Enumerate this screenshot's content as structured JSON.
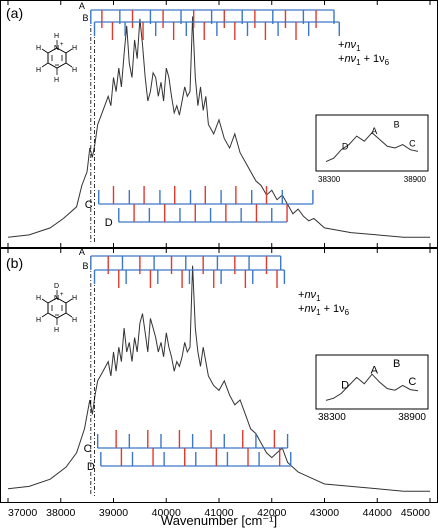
{
  "chart_data": {
    "type": "line",
    "xlabel": "Wavenumber [cm⁻¹]",
    "xlim": [
      37000,
      45000
    ],
    "xticks": [
      "37000",
      "38000",
      "39000",
      "40000",
      "41000",
      "42000",
      "43000",
      "44000",
      "45000"
    ],
    "colors": {
      "nv1": "#3d78c6",
      "nv1_plus_v6": "#e03a2f",
      "trace": "#333333"
    },
    "panels": [
      {
        "label": "(a)",
        "progression_labels": [
          "A",
          "B",
          "C",
          "D"
        ],
        "legend": {
          "nv1": {
            "prefix": "+",
            "term": "nν",
            "sub": "1"
          },
          "nv1_plus_v6": {
            "prefix": "+",
            "term": "nν",
            "sub": "1",
            "mid": " + 1ν",
            "sub2": "6"
          }
        },
        "series": [
          {
            "name": "spectrum",
            "x": [
              37000,
              37400,
              37800,
              38050,
              38300,
              38400,
              38500,
              38550,
              38600,
              38650,
              38700,
              38800,
              38900,
              38950,
              39000,
              39050,
              39100,
              39150,
              39200,
              39250,
              39300,
              39350,
              39400,
              39450,
              39500,
              39550,
              39600,
              39650,
              39700,
              39750,
              39800,
              39850,
              39900,
              39950,
              40000,
              40050,
              40100,
              40150,
              40200,
              40250,
              40300,
              40350,
              40400,
              40450,
              40500,
              40550,
              40600,
              40650,
              40700,
              40750,
              40800,
              40900,
              41000,
              41100,
              41200,
              41300,
              41400,
              41500,
              41600,
              41700,
              41800,
              41900,
              42000,
              42100,
              42200,
              42300,
              42400,
              42500,
              42600,
              42700,
              42800,
              43000,
              43500,
              44000,
              44500,
              45000
            ],
            "y": [
              0.02,
              0.03,
              0.06,
              0.1,
              0.15,
              0.24,
              0.3,
              0.4,
              0.36,
              0.42,
              0.5,
              0.56,
              0.62,
              0.58,
              0.7,
              0.64,
              0.74,
              0.66,
              0.8,
              0.92,
              0.76,
              0.7,
              0.86,
              0.78,
              0.95,
              0.84,
              0.7,
              0.6,
              0.64,
              0.72,
              0.7,
              0.62,
              0.68,
              0.6,
              0.74,
              0.7,
              0.62,
              0.55,
              0.58,
              0.54,
              0.6,
              0.66,
              0.62,
              0.64,
              0.96,
              0.7,
              0.58,
              0.66,
              0.56,
              0.62,
              0.5,
              0.46,
              0.52,
              0.44,
              0.4,
              0.46,
              0.38,
              0.34,
              0.3,
              0.26,
              0.24,
              0.2,
              0.22,
              0.18,
              0.2,
              0.16,
              0.12,
              0.14,
              0.11,
              0.09,
              0.1,
              0.06,
              0.04,
              0.03,
              0.02,
              0.02
            ]
          }
        ],
        "progressions": [
          {
            "name": "A",
            "color": "nv1",
            "positions": [
              38570,
              39120,
              39700,
              40280,
              40860,
              41440,
              42020,
              42600,
              43180
            ]
          },
          {
            "name": "A",
            "color": "nv1_plus_v6",
            "positions": [
              38780,
              39360,
              39940,
              40520,
              41100,
              41680,
              42260,
              42840
            ]
          },
          {
            "name": "B",
            "color": "nv1",
            "positions": [
              38640,
              39220,
              39800,
              40380,
              40960,
              41540,
              42120,
              42700,
              43280
            ]
          },
          {
            "name": "B",
            "color": "nv1_plus_v6",
            "positions": [
              38980,
              39560,
              40140,
              40720,
              41300,
              41880,
              42460
            ]
          },
          {
            "name": "C",
            "color": "nv1",
            "positions": [
              38720,
              39300,
              39880,
              40460,
              41040,
              41620,
              42200,
              42780
            ]
          },
          {
            "name": "C",
            "color": "nv1_plus_v6",
            "positions": [
              39000,
              39580,
              40160,
              40740,
              41320,
              41900
            ]
          },
          {
            "name": "D",
            "color": "nv1",
            "positions": [
              39100,
              39680,
              40260,
              40840,
              41420,
              42000
            ]
          },
          {
            "name": "D",
            "color": "nv1_plus_v6",
            "positions": [
              39390,
              39970,
              40550,
              41130,
              41710,
              42290
            ]
          }
        ],
        "inset": {
          "labels": [
            "A",
            "B",
            "C",
            "D"
          ],
          "xticks": [
            "38300",
            "38900"
          ],
          "x": [
            38300,
            38350,
            38400,
            38450,
            38500,
            38550,
            38600,
            38650,
            38700,
            38750,
            38800,
            38850,
            38900
          ],
          "y": [
            0.1,
            0.2,
            0.45,
            0.6,
            0.85,
            0.7,
            0.95,
            0.75,
            0.55,
            0.5,
            0.6,
            0.45,
            0.4
          ]
        }
      },
      {
        "label": "(b)",
        "progression_labels": [
          "A",
          "B",
          "C",
          "D"
        ],
        "legend": {
          "nv1": {
            "prefix": "+",
            "term": "nν",
            "sub": "1"
          },
          "nv1_plus_v6": {
            "prefix": "+",
            "term": "nν",
            "sub": "1",
            "mid": " + 1ν",
            "sub2": "6"
          }
        },
        "series": [
          {
            "name": "spectrum",
            "x": [
              37000,
              37400,
              37800,
              38100,
              38300,
              38450,
              38550,
              38600,
              38650,
              38700,
              38800,
              38900,
              38950,
              39000,
              39050,
              39100,
              39150,
              39200,
              39250,
              39300,
              39350,
              39400,
              39450,
              39500,
              39550,
              39600,
              39650,
              39700,
              39750,
              39800,
              39850,
              39900,
              39950,
              40000,
              40050,
              40100,
              40150,
              40200,
              40250,
              40300,
              40350,
              40400,
              40450,
              40500,
              40550,
              40600,
              40650,
              40700,
              40750,
              40800,
              40900,
              41000,
              41100,
              41200,
              41300,
              41400,
              41500,
              41600,
              41700,
              41800,
              41900,
              42000,
              42100,
              42200,
              42300,
              42400,
              42500,
              42600,
              42700,
              42800,
              43000,
              43500,
              44000,
              44500,
              45000
            ],
            "y": [
              0.03,
              0.04,
              0.07,
              0.12,
              0.18,
              0.28,
              0.4,
              0.34,
              0.42,
              0.48,
              0.52,
              0.56,
              0.5,
              0.6,
              0.52,
              0.62,
              0.56,
              0.7,
              0.6,
              0.64,
              0.56,
              0.66,
              0.6,
              0.72,
              0.76,
              0.68,
              0.6,
              0.74,
              0.7,
              0.66,
              0.6,
              0.64,
              0.58,
              0.68,
              0.62,
              0.58,
              0.52,
              0.56,
              0.54,
              0.58,
              0.64,
              0.6,
              0.62,
              0.96,
              0.7,
              0.6,
              0.54,
              0.62,
              0.56,
              0.5,
              0.46,
              0.44,
              0.48,
              0.42,
              0.38,
              0.4,
              0.34,
              0.28,
              0.26,
              0.22,
              0.18,
              0.16,
              0.18,
              0.2,
              0.14,
              0.12,
              0.1,
              0.09,
              0.08,
              0.07,
              0.05,
              0.04,
              0.03,
              0.02,
              0.02
            ]
          }
        ],
        "progressions": [
          {
            "name": "A",
            "color": "nv1",
            "positions": [
              38570,
              39170,
              39770,
              40370,
              40970,
              41570,
              42170
            ]
          },
          {
            "name": "A",
            "color": "nv1_plus_v6",
            "positions": [
              38900,
              39500,
              40100,
              40700,
              41300,
              41900
            ]
          },
          {
            "name": "B",
            "color": "nv1",
            "positions": [
              38640,
              39240,
              39840,
              40440,
              41040,
              41640,
              42240
            ]
          },
          {
            "name": "B",
            "color": "nv1_plus_v6",
            "positions": [
              39100,
              39700,
              40300,
              40900,
              41500,
              42100
            ]
          },
          {
            "name": "C",
            "color": "nv1",
            "positions": [
              38700,
              39300,
              39900,
              40500,
              41100,
              41700,
              42300
            ]
          },
          {
            "name": "C",
            "color": "nv1_plus_v6",
            "positions": [
              39050,
              39650,
              40250,
              40850,
              41450,
              42050
            ]
          },
          {
            "name": "D",
            "color": "nv1",
            "positions": [
              38760,
              39360,
              39960,
              40560,
              41160,
              41760,
              42360
            ]
          },
          {
            "name": "D",
            "color": "nv1_plus_v6",
            "positions": [
              39150,
              39750,
              40350,
              40950,
              41550,
              42150
            ]
          }
        ],
        "inset": {
          "labels": [
            "A",
            "B",
            "C",
            "D"
          ],
          "xticks": [
            "38300",
            "38900"
          ],
          "x": [
            38300,
            38350,
            38400,
            38450,
            38500,
            38550,
            38600,
            38650,
            38700,
            38750,
            38800,
            38850,
            38900
          ],
          "y": [
            0.08,
            0.15,
            0.3,
            0.55,
            0.8,
            0.6,
            0.9,
            0.65,
            0.45,
            0.4,
            0.55,
            0.42,
            0.38
          ]
        }
      }
    ]
  }
}
